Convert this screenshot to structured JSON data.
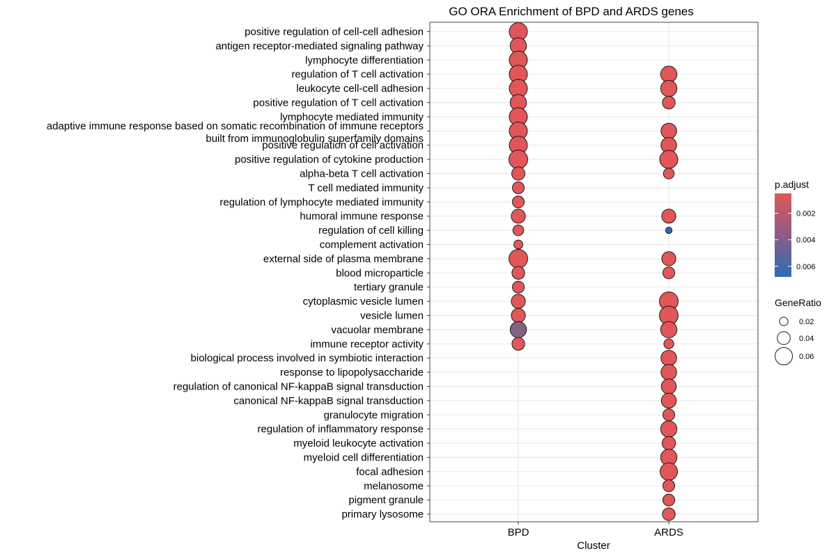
{
  "chart_data": {
    "type": "scatter",
    "title": "GO ORA Enrichment of BPD and ARDS genes",
    "xlabel": "Cluster",
    "ylabel": "",
    "categories": [
      "BPD",
      "ARDS"
    ],
    "terms": [
      "positive regulation of cell-cell adhesion",
      "antigen receptor-mediated signaling pathway",
      "lymphocyte differentiation",
      "regulation of T cell activation",
      "leukocyte cell-cell adhesion",
      "positive regulation of T cell activation",
      "lymphocyte mediated immunity",
      "adaptive immune response based on somatic recombination of immune receptors built from immunoglobulin superfamily domains",
      "positive regulation of cell activation",
      "positive regulation of cytokine production",
      "alpha-beta T cell activation",
      "T cell mediated immunity",
      "regulation of lymphocyte mediated immunity",
      "humoral immune response",
      "regulation of cell killing",
      "complement activation",
      "external side of plasma membrane",
      "blood microparticle",
      "tertiary granule",
      "cytoplasmic vesicle lumen",
      "vesicle lumen",
      "vacuolar membrane",
      "immune receptor activity",
      "biological process involved in symbiotic interaction",
      "response to lipopolysaccharide",
      "regulation of canonical NF-kappaB signal transduction",
      "canonical NF-kappaB signal transduction",
      "granulocyte migration",
      "regulation of inflammatory response",
      "myeloid leukocyte activation",
      "myeloid cell differentiation",
      "focal adhesion",
      "melanosome",
      "pigment granule",
      "primary lysosome"
    ],
    "term_label_lines": [
      [
        "positive regulation of cell-cell adhesion"
      ],
      [
        "antigen receptor-mediated signaling pathway"
      ],
      [
        "lymphocyte differentiation"
      ],
      [
        "regulation of T cell activation"
      ],
      [
        "leukocyte cell-cell adhesion"
      ],
      [
        "positive regulation of T cell activation"
      ],
      [
        "lymphocyte mediated immunity"
      ],
      [
        "adaptive immune response based on somatic recombination of immune receptors",
        "built from immunoglobulin superfamily domains"
      ],
      [
        "positive regulation of cell activation"
      ],
      [
        "positive regulation of cytokine production"
      ],
      [
        "alpha-beta T cell activation"
      ],
      [
        "T cell mediated immunity"
      ],
      [
        "regulation of lymphocyte mediated immunity"
      ],
      [
        "humoral immune response"
      ],
      [
        "regulation of cell killing"
      ],
      [
        "complement activation"
      ],
      [
        "external side of plasma membrane"
      ],
      [
        "blood microparticle"
      ],
      [
        "tertiary granule"
      ],
      [
        "cytoplasmic vesicle lumen"
      ],
      [
        "vesicle lumen"
      ],
      [
        "vacuolar membrane"
      ],
      [
        "immune receptor activity"
      ],
      [
        "biological process involved in symbiotic interaction"
      ],
      [
        "response to lipopolysaccharide"
      ],
      [
        "regulation of canonical NF-kappaB signal transduction"
      ],
      [
        "canonical NF-kappaB signal transduction"
      ],
      [
        "granulocyte migration"
      ],
      [
        "regulation of inflammatory response"
      ],
      [
        "myeloid leukocyte activation"
      ],
      [
        "myeloid cell differentiation"
      ],
      [
        "focal adhesion"
      ],
      [
        "melanosome"
      ],
      [
        "pigment granule"
      ],
      [
        "primary lysosome"
      ]
    ],
    "points": [
      {
        "cluster": "BPD",
        "term": "positive regulation of cell-cell adhesion",
        "gene_ratio": 0.063,
        "p_adjust": 0.0005
      },
      {
        "cluster": "BPD",
        "term": "antigen receptor-mediated signaling pathway",
        "gene_ratio": 0.055,
        "p_adjust": 0.0005
      },
      {
        "cluster": "BPD",
        "term": "lymphocyte differentiation",
        "gene_ratio": 0.063,
        "p_adjust": 0.0005
      },
      {
        "cluster": "BPD",
        "term": "regulation of T cell activation",
        "gene_ratio": 0.063,
        "p_adjust": 0.0005
      },
      {
        "cluster": "BPD",
        "term": "leukocyte cell-cell adhesion",
        "gene_ratio": 0.063,
        "p_adjust": 0.0005
      },
      {
        "cluster": "BPD",
        "term": "positive regulation of T cell activation",
        "gene_ratio": 0.055,
        "p_adjust": 0.0005
      },
      {
        "cluster": "BPD",
        "term": "lymphocyte mediated immunity",
        "gene_ratio": 0.063,
        "p_adjust": 0.0005
      },
      {
        "cluster": "BPD",
        "term": "adaptive immune response based on somatic recombination of immune receptors built from immunoglobulin superfamily domains",
        "gene_ratio": 0.063,
        "p_adjust": 0.0005
      },
      {
        "cluster": "BPD",
        "term": "positive regulation of cell activation",
        "gene_ratio": 0.063,
        "p_adjust": 0.0005
      },
      {
        "cluster": "BPD",
        "term": "positive regulation of cytokine production",
        "gene_ratio": 0.066,
        "p_adjust": 0.0005
      },
      {
        "cluster": "BPD",
        "term": "alpha-beta T cell activation",
        "gene_ratio": 0.041,
        "p_adjust": 0.0005
      },
      {
        "cluster": "BPD",
        "term": "T cell mediated immunity",
        "gene_ratio": 0.035,
        "p_adjust": 0.0005
      },
      {
        "cluster": "BPD",
        "term": "regulation of lymphocyte mediated immunity",
        "gene_ratio": 0.035,
        "p_adjust": 0.0005
      },
      {
        "cluster": "BPD",
        "term": "humoral immune response",
        "gene_ratio": 0.045,
        "p_adjust": 0.0005
      },
      {
        "cluster": "BPD",
        "term": "regulation of cell killing",
        "gene_ratio": 0.03,
        "p_adjust": 0.0005
      },
      {
        "cluster": "BPD",
        "term": "complement activation",
        "gene_ratio": 0.022,
        "p_adjust": 0.0005
      },
      {
        "cluster": "BPD",
        "term": "external side of plasma membrane",
        "gene_ratio": 0.066,
        "p_adjust": 0.0005
      },
      {
        "cluster": "BPD",
        "term": "blood microparticle",
        "gene_ratio": 0.039,
        "p_adjust": 0.0005
      },
      {
        "cluster": "BPD",
        "term": "tertiary granule",
        "gene_ratio": 0.035,
        "p_adjust": 0.0005
      },
      {
        "cluster": "BPD",
        "term": "cytoplasmic vesicle lumen",
        "gene_ratio": 0.045,
        "p_adjust": 0.0005
      },
      {
        "cluster": "BPD",
        "term": "vesicle lumen",
        "gene_ratio": 0.045,
        "p_adjust": 0.0005
      },
      {
        "cluster": "BPD",
        "term": "vacuolar membrane",
        "gene_ratio": 0.055,
        "p_adjust": 0.0038
      },
      {
        "cluster": "BPD",
        "term": "immune receptor activity",
        "gene_ratio": 0.039,
        "p_adjust": 0.0005
      },
      {
        "cluster": "ARDS",
        "term": "regulation of T cell activation",
        "gene_ratio": 0.055,
        "p_adjust": 0.0005
      },
      {
        "cluster": "ARDS",
        "term": "leukocyte cell-cell adhesion",
        "gene_ratio": 0.055,
        "p_adjust": 0.0005
      },
      {
        "cluster": "ARDS",
        "term": "positive regulation of T cell activation",
        "gene_ratio": 0.039,
        "p_adjust": 0.0005
      },
      {
        "cluster": "ARDS",
        "term": "adaptive immune response based on somatic recombination of immune receptors built from immunoglobulin superfamily domains",
        "gene_ratio": 0.052,
        "p_adjust": 0.0005
      },
      {
        "cluster": "ARDS",
        "term": "positive regulation of cell activation",
        "gene_ratio": 0.052,
        "p_adjust": 0.0005
      },
      {
        "cluster": "ARDS",
        "term": "positive regulation of cytokine production",
        "gene_ratio": 0.063,
        "p_adjust": 0.0005
      },
      {
        "cluster": "ARDS",
        "term": "alpha-beta T cell activation",
        "gene_ratio": 0.03,
        "p_adjust": 0.0005
      },
      {
        "cluster": "ARDS",
        "term": "humoral immune response",
        "gene_ratio": 0.045,
        "p_adjust": 0.0005
      },
      {
        "cluster": "ARDS",
        "term": "regulation of cell killing",
        "gene_ratio": 0.011,
        "p_adjust": 0.0068
      },
      {
        "cluster": "ARDS",
        "term": "external side of plasma membrane",
        "gene_ratio": 0.045,
        "p_adjust": 0.0005
      },
      {
        "cluster": "ARDS",
        "term": "blood microparticle",
        "gene_ratio": 0.035,
        "p_adjust": 0.0005
      },
      {
        "cluster": "ARDS",
        "term": "cytoplasmic vesicle lumen",
        "gene_ratio": 0.066,
        "p_adjust": 0.0005
      },
      {
        "cluster": "ARDS",
        "term": "vesicle lumen",
        "gene_ratio": 0.066,
        "p_adjust": 0.0005
      },
      {
        "cluster": "ARDS",
        "term": "vacuolar membrane",
        "gene_ratio": 0.055,
        "p_adjust": 0.0005
      },
      {
        "cluster": "ARDS",
        "term": "immune receptor activity",
        "gene_ratio": 0.026,
        "p_adjust": 0.0005
      },
      {
        "cluster": "ARDS",
        "term": "biological process involved in symbiotic interaction",
        "gene_ratio": 0.052,
        "p_adjust": 0.0005
      },
      {
        "cluster": "ARDS",
        "term": "response to lipopolysaccharide",
        "gene_ratio": 0.052,
        "p_adjust": 0.0005
      },
      {
        "cluster": "ARDS",
        "term": "regulation of canonical NF-kappaB signal transduction",
        "gene_ratio": 0.049,
        "p_adjust": 0.0005
      },
      {
        "cluster": "ARDS",
        "term": "canonical NF-kappaB signal transduction",
        "gene_ratio": 0.049,
        "p_adjust": 0.0005
      },
      {
        "cluster": "ARDS",
        "term": "granulocyte migration",
        "gene_ratio": 0.035,
        "p_adjust": 0.0005
      },
      {
        "cluster": "ARDS",
        "term": "regulation of inflammatory response",
        "gene_ratio": 0.055,
        "p_adjust": 0.0005
      },
      {
        "cluster": "ARDS",
        "term": "myeloid leukocyte activation",
        "gene_ratio": 0.042,
        "p_adjust": 0.0005
      },
      {
        "cluster": "ARDS",
        "term": "myeloid cell differentiation",
        "gene_ratio": 0.055,
        "p_adjust": 0.0005
      },
      {
        "cluster": "ARDS",
        "term": "focal adhesion",
        "gene_ratio": 0.06,
        "p_adjust": 0.0005
      },
      {
        "cluster": "ARDS",
        "term": "melanosome",
        "gene_ratio": 0.035,
        "p_adjust": 0.0005
      },
      {
        "cluster": "ARDS",
        "term": "pigment granule",
        "gene_ratio": 0.035,
        "p_adjust": 0.0005
      },
      {
        "cluster": "ARDS",
        "term": "primary lysosome",
        "gene_ratio": 0.039,
        "p_adjust": 0.0005
      }
    ],
    "color_legend": {
      "title": "p.adjust",
      "ticks": [
        0.002,
        0.004,
        0.006
      ],
      "tick_labels": [
        "0.002",
        "0.004",
        "0.006"
      ],
      "range": [
        0.0005,
        0.0068
      ],
      "low_color": "#e15759",
      "high_color": "#2c6db3"
    },
    "size_legend": {
      "title": "GeneRatio",
      "values": [
        0.02,
        0.04,
        0.06
      ],
      "labels": [
        "0.02",
        "0.04",
        "0.06"
      ]
    },
    "grid": true,
    "legend_position": "right"
  }
}
